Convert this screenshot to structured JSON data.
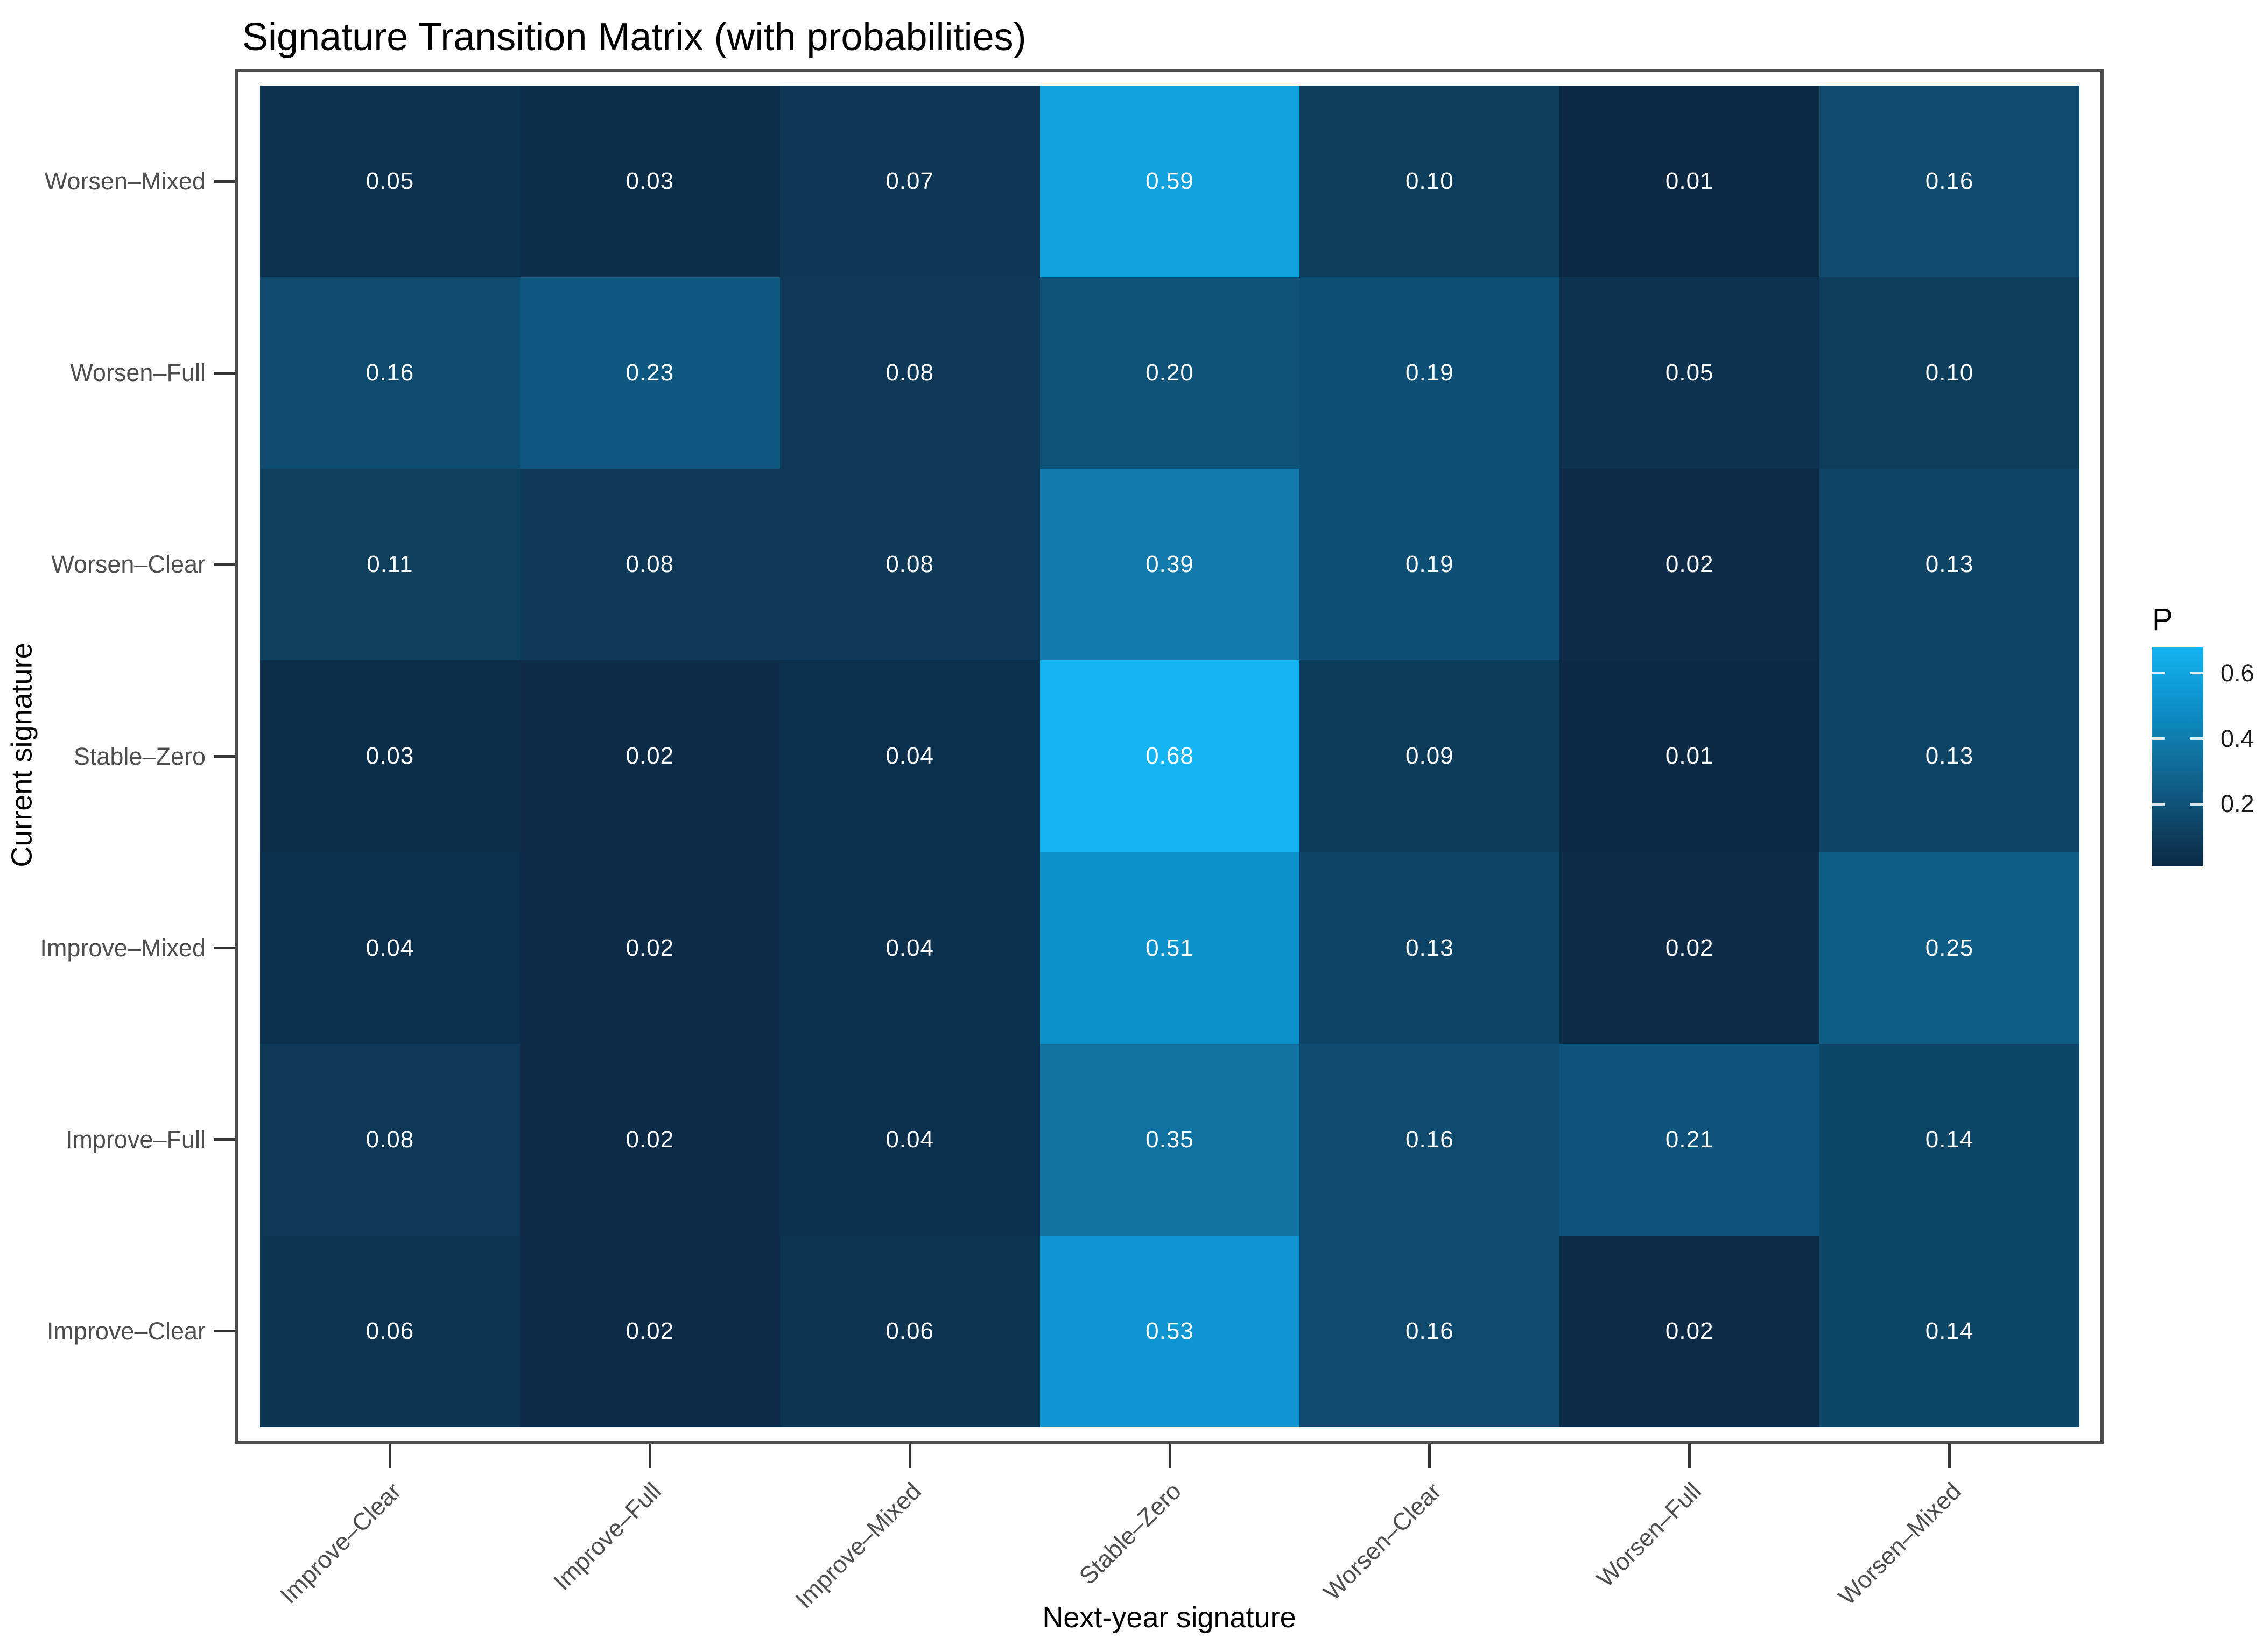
{
  "chart_data": {
    "type": "heatmap",
    "title": "Signature Transition Matrix (with probabilities)",
    "xlabel": "Next-year signature",
    "ylabel": "Current signature",
    "x_categories": [
      "Improve–Clear",
      "Improve–Full",
      "Improve–Mixed",
      "Stable–Zero",
      "Worsen–Clear",
      "Worsen–Full",
      "Worsen–Mixed"
    ],
    "y_categories_top_to_bottom": [
      "Worsen–Mixed",
      "Worsen–Full",
      "Worsen–Clear",
      "Stable–Zero",
      "Improve–Mixed",
      "Improve–Full",
      "Improve–Clear"
    ],
    "rows": [
      {
        "y": "Worsen–Mixed",
        "values": [
          0.05,
          0.03,
          0.07,
          0.59,
          0.1,
          0.01,
          0.16
        ]
      },
      {
        "y": "Worsen–Full",
        "values": [
          0.16,
          0.23,
          0.08,
          0.2,
          0.19,
          0.05,
          0.1
        ]
      },
      {
        "y": "Worsen–Clear",
        "values": [
          0.11,
          0.08,
          0.08,
          0.39,
          0.19,
          0.02,
          0.13
        ]
      },
      {
        "y": "Stable–Zero",
        "values": [
          0.03,
          0.02,
          0.04,
          0.68,
          0.09,
          0.01,
          0.13
        ]
      },
      {
        "y": "Improve–Mixed",
        "values": [
          0.04,
          0.02,
          0.04,
          0.51,
          0.13,
          0.02,
          0.25
        ]
      },
      {
        "y": "Improve–Full",
        "values": [
          0.08,
          0.02,
          0.04,
          0.35,
          0.16,
          0.21,
          0.14
        ]
      },
      {
        "y": "Improve–Clear",
        "values": [
          0.06,
          0.02,
          0.06,
          0.53,
          0.16,
          0.02,
          0.14
        ]
      }
    ],
    "value_decimals": 2,
    "scale": {
      "min": 0.01,
      "max": 0.68
    },
    "legend": {
      "title": "P",
      "ticks": [
        0.6,
        0.4,
        0.2
      ],
      "position": "right"
    },
    "grid": false,
    "colors": {
      "gradient_stops": [
        {
          "pos": 0.0,
          "color": "#0C2A44"
        },
        {
          "pos": 0.5,
          "color": "#10719F"
        },
        {
          "pos": 0.75,
          "color": "#0D93CC"
        },
        {
          "pos": 1.0,
          "color": "#15B4F2"
        }
      ],
      "cell_text": "#FFFFFF",
      "axis_text": "#4D4D4D",
      "title_text": "#000000",
      "panel_border": "#4D4D4D",
      "tick_mark": "#333333"
    }
  }
}
